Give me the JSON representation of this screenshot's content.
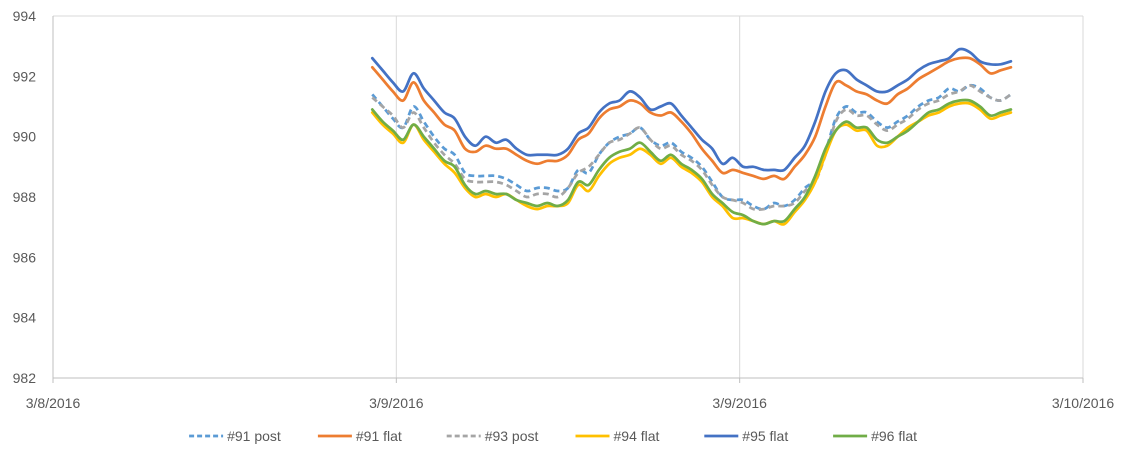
{
  "chart_data": {
    "type": "line",
    "title": "",
    "xlabel": "",
    "ylabel": "",
    "ylim": [
      982,
      994
    ],
    "yticks": [
      982,
      984,
      986,
      988,
      990,
      992,
      994
    ],
    "x_tick_labels": [
      "3/8/2016",
      "3/9/2016",
      "3/9/2016",
      "3/10/2016"
    ],
    "grid": {
      "vertical": true,
      "horizontal": false
    },
    "legend_position": "bottom",
    "x_domain": [
      0,
      100
    ],
    "x": [
      31,
      32,
      33,
      34,
      35,
      36,
      37,
      38,
      39,
      40,
      41,
      42,
      43,
      44,
      45,
      46,
      47,
      48,
      49,
      50,
      51,
      52,
      53,
      54,
      55,
      56,
      57,
      58,
      59,
      60,
      61,
      62,
      63,
      64,
      65,
      66,
      67,
      68,
      69,
      70,
      71,
      72,
      73,
      74,
      75,
      76,
      77,
      78,
      79,
      80,
      81,
      82,
      83,
      84,
      85,
      86,
      87,
      88,
      89,
      90,
      91,
      92,
      93
    ],
    "series": [
      {
        "name": "#91 post",
        "color": "#5B9BD5",
        "dash": true,
        "values": [
          991.4,
          991.0,
          990.6,
          990.3,
          991.0,
          990.5,
          990.0,
          989.6,
          989.4,
          988.8,
          988.7,
          988.7,
          988.7,
          988.6,
          988.4,
          988.2,
          988.3,
          988.3,
          988.2,
          988.3,
          988.9,
          988.8,
          989.4,
          989.8,
          990.0,
          990.1,
          990.3,
          989.9,
          989.7,
          989.8,
          989.5,
          989.3,
          989.0,
          988.5,
          988.0,
          987.9,
          987.9,
          987.7,
          987.6,
          987.8,
          987.7,
          987.9,
          988.3,
          988.6,
          989.5,
          990.6,
          991.0,
          990.8,
          990.8,
          990.5,
          990.3,
          990.5,
          990.7,
          991.0,
          991.2,
          991.3,
          991.6,
          991.5,
          991.7,
          991.6,
          991.3,
          991.2,
          991.4
        ]
      },
      {
        "name": "#91 flat",
        "color": "#ED7D31",
        "dash": false,
        "values": [
          992.3,
          991.9,
          991.5,
          991.2,
          991.8,
          991.2,
          990.8,
          990.4,
          990.2,
          989.6,
          989.5,
          989.7,
          989.6,
          989.6,
          989.4,
          989.2,
          989.1,
          989.2,
          989.2,
          989.4,
          989.9,
          990.1,
          990.6,
          990.9,
          991.0,
          991.2,
          991.1,
          990.8,
          990.7,
          990.8,
          990.5,
          990.1,
          989.6,
          989.2,
          988.8,
          988.9,
          988.8,
          988.7,
          988.6,
          988.7,
          988.6,
          989.0,
          989.4,
          990.0,
          991.0,
          991.8,
          991.7,
          991.5,
          991.4,
          991.2,
          991.1,
          991.4,
          991.6,
          991.9,
          992.1,
          992.3,
          992.5,
          992.6,
          992.6,
          992.4,
          992.1,
          992.2,
          992.3
        ]
      },
      {
        "name": "#93 post",
        "color": "#A5A5A5",
        "dash": true,
        "values": [
          991.3,
          991.0,
          990.7,
          990.3,
          990.8,
          990.3,
          989.8,
          989.4,
          989.1,
          988.6,
          988.5,
          988.5,
          988.5,
          988.4,
          988.2,
          988.0,
          988.1,
          988.1,
          988.0,
          988.3,
          988.8,
          989.0,
          989.4,
          989.8,
          989.9,
          990.1,
          990.3,
          989.9,
          989.6,
          989.7,
          989.4,
          989.2,
          988.9,
          988.4,
          988.0,
          987.9,
          987.8,
          987.6,
          987.6,
          987.7,
          987.7,
          987.8,
          988.2,
          988.5,
          989.4,
          990.5,
          990.9,
          990.7,
          990.7,
          990.4,
          990.2,
          990.4,
          990.6,
          990.9,
          991.1,
          991.2,
          991.4,
          991.5,
          991.7,
          991.5,
          991.3,
          991.2,
          991.4
        ]
      },
      {
        "name": "#94 flat",
        "color": "#FFC000",
        "dash": false,
        "values": [
          990.8,
          990.4,
          990.1,
          989.8,
          990.4,
          989.9,
          989.5,
          989.1,
          988.8,
          988.3,
          988.0,
          988.1,
          988.0,
          988.1,
          987.9,
          987.7,
          987.6,
          987.7,
          987.7,
          987.8,
          988.4,
          988.2,
          988.7,
          989.1,
          989.3,
          989.4,
          989.6,
          989.4,
          989.1,
          989.3,
          989.0,
          988.8,
          988.5,
          988.0,
          987.7,
          987.3,
          987.3,
          987.2,
          987.1,
          987.2,
          987.1,
          987.5,
          987.9,
          988.5,
          989.4,
          990.2,
          990.4,
          990.2,
          990.2,
          989.7,
          989.7,
          990.0,
          990.3,
          990.5,
          990.7,
          990.8,
          991.0,
          991.1,
          991.1,
          990.9,
          990.6,
          990.7,
          990.8
        ]
      },
      {
        "name": "#95 flat",
        "color": "#4472C4",
        "dash": false,
        "values": [
          992.6,
          992.2,
          991.8,
          991.5,
          992.1,
          991.6,
          991.2,
          990.8,
          990.6,
          990.0,
          989.7,
          990.0,
          989.8,
          989.9,
          989.6,
          989.4,
          989.4,
          989.4,
          989.4,
          989.6,
          990.1,
          990.3,
          990.8,
          991.1,
          991.2,
          991.5,
          991.3,
          990.9,
          991.0,
          991.1,
          990.7,
          990.3,
          989.9,
          989.6,
          989.1,
          989.3,
          989.0,
          989.0,
          988.9,
          988.9,
          988.9,
          989.3,
          989.7,
          990.5,
          991.5,
          992.1,
          992.2,
          991.9,
          991.7,
          991.5,
          991.5,
          991.7,
          991.9,
          992.2,
          992.4,
          992.5,
          992.6,
          992.9,
          992.8,
          992.5,
          992.4,
          992.4,
          992.5
        ]
      },
      {
        "name": "#96 flat",
        "color": "#70AD47",
        "dash": false,
        "values": [
          990.9,
          990.5,
          990.2,
          989.9,
          990.4,
          990.0,
          989.6,
          989.2,
          989.0,
          988.4,
          988.1,
          988.2,
          988.1,
          988.1,
          987.9,
          987.8,
          987.7,
          987.8,
          987.7,
          987.9,
          988.5,
          988.4,
          988.9,
          989.3,
          989.5,
          989.6,
          989.8,
          989.5,
          989.2,
          989.4,
          989.1,
          988.9,
          988.6,
          988.1,
          987.8,
          987.5,
          987.4,
          987.2,
          987.1,
          987.2,
          987.2,
          987.6,
          988.0,
          988.7,
          989.6,
          990.2,
          990.5,
          990.3,
          990.3,
          989.9,
          989.8,
          990.0,
          990.2,
          990.5,
          990.8,
          990.9,
          991.1,
          991.2,
          991.2,
          991.0,
          990.7,
          990.8,
          990.9
        ]
      }
    ]
  }
}
